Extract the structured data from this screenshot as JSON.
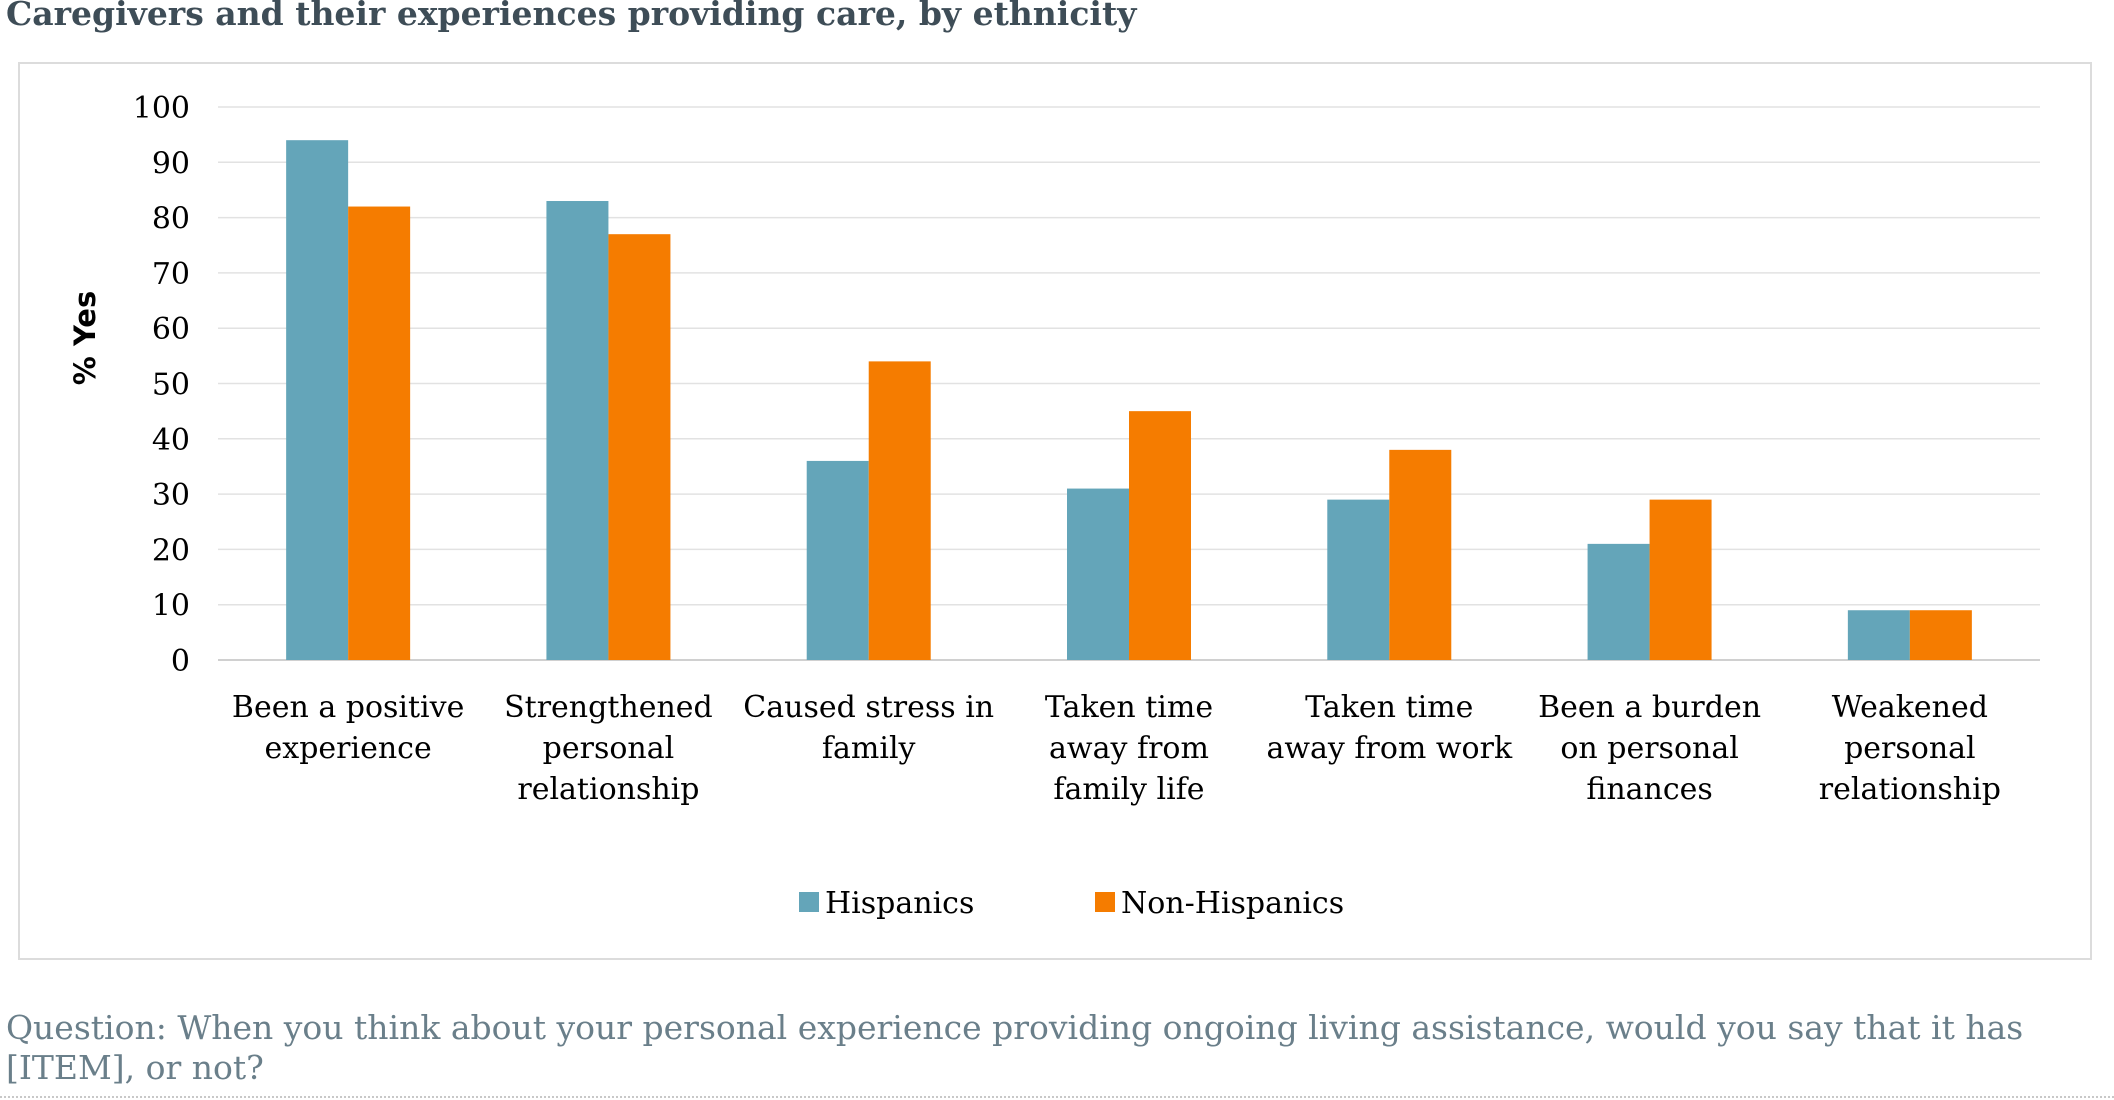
{
  "header": {
    "title": "Caregivers and their experiences providing care, by ethnicity"
  },
  "footer": {
    "question": "Question: When you think about your personal experience providing ongoing living assistance, would you say that it has [ITEM], or not?"
  },
  "chart_data": {
    "type": "bar",
    "ylabel": "% Yes",
    "ylim": [
      0,
      100
    ],
    "yticks": [
      0,
      10,
      20,
      30,
      40,
      50,
      60,
      70,
      80,
      90,
      100
    ],
    "grid": true,
    "legend_position": "bottom",
    "categories": [
      [
        "Been a positive",
        "experience"
      ],
      [
        "Strengthened",
        "personal",
        "relationship"
      ],
      [
        "Caused stress in",
        "family"
      ],
      [
        "Taken time",
        "away from",
        "family life"
      ],
      [
        "Taken time",
        "away from work"
      ],
      [
        "Been a burden",
        "on personal",
        "finances"
      ],
      [
        "Weakened",
        "personal",
        "relationship"
      ]
    ],
    "series": [
      {
        "name": "Hispanics",
        "color": "#64a5b9",
        "values": [
          94,
          83,
          36,
          31,
          29,
          21,
          9
        ]
      },
      {
        "name": "Non-Hispanics",
        "color": "#f57c00",
        "values": [
          82,
          77,
          54,
          45,
          38,
          29,
          9
        ]
      }
    ]
  }
}
